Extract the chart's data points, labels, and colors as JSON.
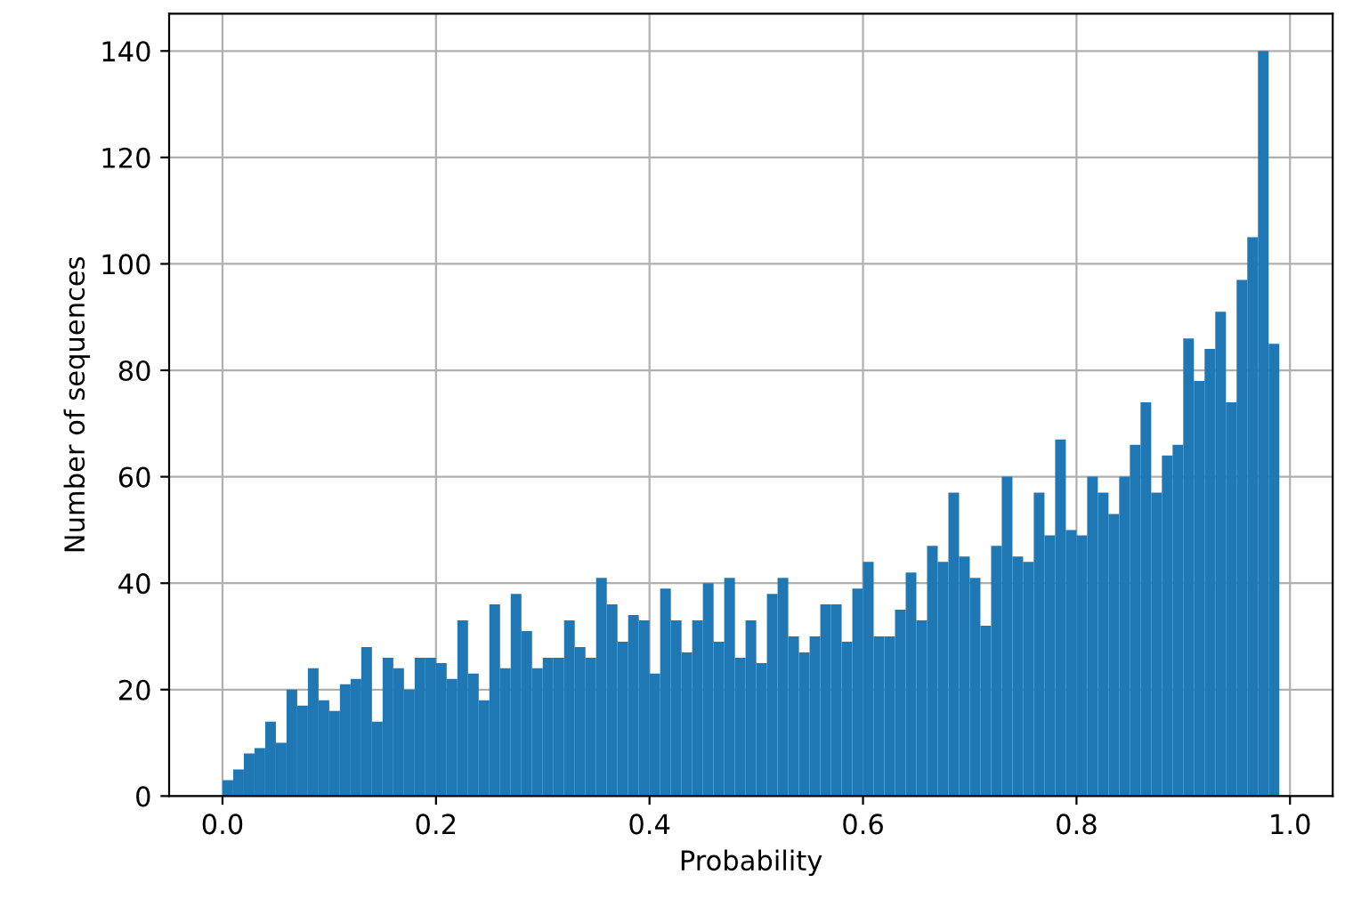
{
  "chart_data": {
    "type": "histogram",
    "xlabel": "Probability",
    "ylabel": "Number of sequences",
    "color": "#1f77b4",
    "bins": [
      0.0,
      0.01,
      0.02,
      0.03,
      0.04,
      0.05,
      0.06,
      0.07,
      0.08,
      0.09,
      0.1,
      0.11,
      0.12,
      0.13,
      0.14,
      0.15,
      0.16,
      0.17,
      0.18,
      0.19,
      0.2,
      0.21,
      0.22,
      0.23,
      0.24,
      0.25,
      0.26,
      0.27,
      0.28,
      0.29,
      0.3,
      0.31,
      0.32,
      0.33,
      0.34,
      0.35,
      0.36,
      0.37,
      0.38,
      0.39,
      0.4,
      0.41,
      0.42,
      0.43,
      0.44,
      0.45,
      0.46,
      0.47,
      0.48,
      0.49,
      0.5,
      0.51,
      0.52,
      0.53,
      0.54,
      0.55,
      0.56,
      0.57,
      0.58,
      0.59,
      0.6,
      0.61,
      0.62,
      0.63,
      0.64,
      0.65,
      0.66,
      0.67,
      0.68,
      0.69,
      0.7,
      0.71,
      0.72,
      0.73,
      0.74,
      0.75,
      0.76,
      0.77,
      0.78,
      0.79,
      0.8,
      0.81,
      0.82,
      0.83,
      0.84,
      0.85,
      0.86,
      0.87,
      0.88,
      0.89,
      0.9,
      0.91,
      0.92,
      0.93,
      0.94,
      0.95,
      0.96,
      0.97,
      0.98,
      0.99
    ],
    "values": [
      3,
      5,
      8,
      9,
      14,
      10,
      20,
      17,
      24,
      18,
      16,
      21,
      22,
      28,
      14,
      26,
      24,
      20,
      26,
      26,
      25,
      22,
      33,
      23,
      18,
      36,
      24,
      38,
      31,
      24,
      26,
      26,
      33,
      28,
      26,
      41,
      36,
      29,
      34,
      33,
      23,
      39,
      33,
      27,
      33,
      40,
      29,
      41,
      26,
      33,
      25,
      38,
      41,
      30,
      27,
      30,
      36,
      36,
      29,
      39,
      44,
      30,
      30,
      35,
      42,
      33,
      47,
      44,
      57,
      45,
      41,
      32,
      47,
      60,
      45,
      44,
      57,
      49,
      67,
      50,
      49,
      60,
      57,
      53,
      60,
      66,
      74,
      57,
      64,
      66,
      86,
      78,
      84,
      91,
      74,
      97,
      105,
      140,
      85
    ],
    "xlim": [
      -0.05,
      1.04
    ],
    "ylim": [
      0,
      147
    ],
    "xticks": [
      {
        "value": 0,
        "label": "0.0"
      },
      {
        "value": 0.2,
        "label": "0.2"
      },
      {
        "value": 0.4,
        "label": "0.4"
      },
      {
        "value": 0.6,
        "label": "0.6"
      },
      {
        "value": 0.8,
        "label": "0.8"
      },
      {
        "value": 1,
        "label": "1.0"
      }
    ],
    "yticks": [
      0,
      20,
      40,
      60,
      80,
      100,
      120,
      140
    ],
    "grid": true
  }
}
